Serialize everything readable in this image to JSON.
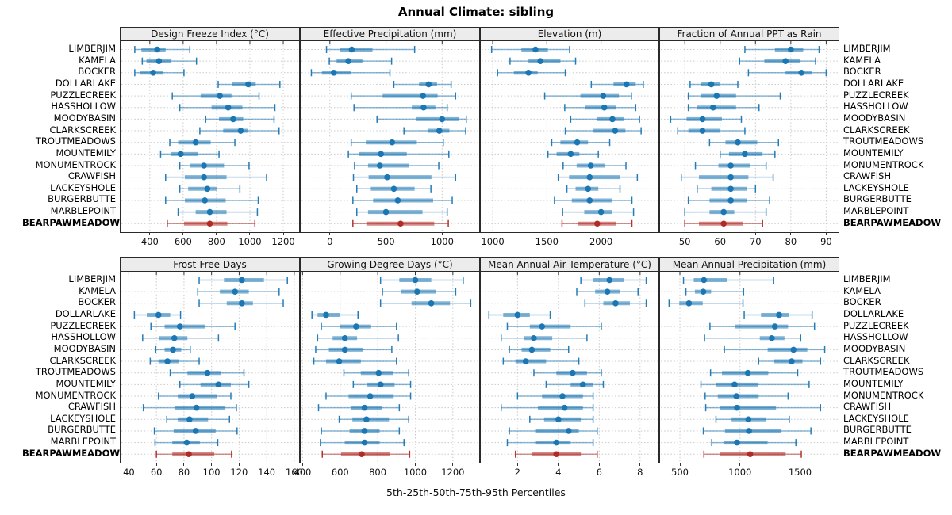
{
  "title": "Annual Climate: sibling",
  "footer": "5th-25th-50th-75th-95th Percentiles",
  "chart_data": {
    "type": "scatter",
    "subtype": "multi-panel percentile dotplot; each row shows 5th-25th-50th-75th-95th percentiles (whisker caps at 5th/95th, thick bar 25th-75th, dot at median)",
    "grid": "on",
    "stations": [
      "LIMBERJIM",
      "KAMELA",
      "BOCKER",
      "DOLLARLAKE",
      "PUZZLECREEK",
      "HASSHOLLOW",
      "MOODYBASIN",
      "CLARKSCREEK",
      "TROUTMEADOWS",
      "MOUNTEMILY",
      "MONUMENTROCK",
      "CRAWFISH",
      "LACKEYSHOLE",
      "BURGERBUTTE",
      "MARBLEPOINT",
      "BEARPAWMEADOW"
    ],
    "highlight_station": "BEARPAWMEADOW",
    "colors": {
      "series": "#1b76b4",
      "highlight": "#b12a24",
      "gridline": "#c9c9c9",
      "strip_bg": "#ececec",
      "panel_border": "#2a2a2a",
      "tick": "#333333"
    },
    "panels": [
      {
        "title": "Design Freeze Index (°C)",
        "grid_row": 0,
        "grid_col": 0,
        "xlim": [
          225,
          1295
        ],
        "ticks": [
          400,
          600,
          800,
          1000,
          1200
        ],
        "percentiles_5_25_50_75_95": [
          [
            310,
            350,
            445,
            495,
            640
          ],
          [
            355,
            380,
            455,
            530,
            680
          ],
          [
            310,
            340,
            420,
            480,
            605
          ],
          [
            810,
            895,
            990,
            1035,
            1180
          ],
          [
            535,
            705,
            820,
            890,
            1055
          ],
          [
            580,
            770,
            870,
            955,
            1150
          ],
          [
            735,
            815,
            900,
            960,
            1145
          ],
          [
            700,
            840,
            945,
            990,
            1175
          ],
          [
            520,
            570,
            675,
            765,
            910
          ],
          [
            465,
            525,
            585,
            690,
            815
          ],
          [
            580,
            640,
            725,
            845,
            995
          ],
          [
            495,
            610,
            725,
            860,
            1100
          ],
          [
            580,
            630,
            745,
            800,
            940
          ],
          [
            495,
            610,
            730,
            855,
            1050
          ],
          [
            570,
            675,
            760,
            860,
            1045
          ],
          [
            505,
            605,
            760,
            865,
            1030
          ]
        ]
      },
      {
        "title": "Effective Precipitation (mm)",
        "grid_row": 0,
        "grid_col": 1,
        "xlim": [
          -260,
          1330
        ],
        "ticks": [
          0,
          500,
          1000
        ],
        "percentiles_5_25_50_75_95": [
          [
            -30,
            90,
            195,
            380,
            755
          ],
          [
            -5,
            60,
            165,
            290,
            550
          ],
          [
            -165,
            -70,
            35,
            190,
            535
          ],
          [
            570,
            795,
            880,
            955,
            1080
          ],
          [
            190,
            470,
            830,
            960,
            1120
          ],
          [
            215,
            730,
            835,
            940,
            1045
          ],
          [
            420,
            765,
            1000,
            1150,
            1215
          ],
          [
            660,
            870,
            975,
            1065,
            1210
          ],
          [
            190,
            320,
            555,
            775,
            1010
          ],
          [
            165,
            260,
            455,
            685,
            1060
          ],
          [
            220,
            340,
            445,
            705,
            970
          ],
          [
            210,
            345,
            510,
            905,
            1120
          ],
          [
            240,
            365,
            570,
            755,
            900
          ],
          [
            205,
            385,
            605,
            920,
            1090
          ],
          [
            240,
            340,
            500,
            825,
            1045
          ],
          [
            205,
            325,
            630,
            930,
            1055
          ]
        ]
      },
      {
        "title": "Elevation (m)",
        "grid_row": 0,
        "grid_col": 2,
        "xlim": [
          890,
          2530
        ],
        "ticks": [
          1000,
          1500,
          2000
        ],
        "percentiles_5_25_50_75_95": [
          [
            990,
            1265,
            1395,
            1510,
            1710
          ],
          [
            1160,
            1330,
            1440,
            1625,
            1765
          ],
          [
            1045,
            1195,
            1330,
            1415,
            1670
          ],
          [
            1910,
            2115,
            2235,
            2320,
            2390
          ],
          [
            1480,
            1810,
            2020,
            2165,
            2280
          ],
          [
            1665,
            1855,
            2030,
            2140,
            2320
          ],
          [
            1720,
            1965,
            2105,
            2210,
            2355
          ],
          [
            1670,
            1930,
            2130,
            2225,
            2370
          ],
          [
            1545,
            1625,
            1780,
            1880,
            2080
          ],
          [
            1510,
            1590,
            1720,
            1800,
            1975
          ],
          [
            1650,
            1775,
            1905,
            2035,
            2230
          ],
          [
            1605,
            1705,
            1895,
            2175,
            2335
          ],
          [
            1685,
            1765,
            1880,
            1975,
            2175
          ],
          [
            1570,
            1730,
            1895,
            2100,
            2285
          ],
          [
            1645,
            1845,
            2000,
            2105,
            2300
          ],
          [
            1640,
            1790,
            1965,
            2135,
            2285
          ]
        ]
      },
      {
        "title": "Fraction of Annual PPT as Rain",
        "grid_row": 0,
        "grid_col": 3,
        "xlim": [
          43,
          93.5
        ],
        "ticks": [
          50,
          60,
          70,
          80,
          90
        ],
        "percentiles_5_25_50_75_95": [
          [
            67,
            75.5,
            80,
            83.5,
            88
          ],
          [
            65.5,
            72.5,
            78.5,
            82.5,
            87
          ],
          [
            68,
            78.5,
            83,
            86,
            90
          ],
          [
            51.5,
            54.5,
            57.5,
            60,
            65
          ],
          [
            51,
            54.5,
            59,
            64.5,
            77
          ],
          [
            51,
            53.5,
            58,
            64.5,
            71
          ],
          [
            46,
            50.5,
            55,
            60.5,
            66
          ],
          [
            48,
            51,
            55,
            60,
            67
          ],
          [
            57,
            61.5,
            65,
            70.5,
            76.5
          ],
          [
            60,
            62.5,
            67,
            72,
            75.5
          ],
          [
            53,
            59.5,
            63,
            68.5,
            73
          ],
          [
            49,
            54,
            63,
            68,
            75
          ],
          [
            53.5,
            57.5,
            63,
            67.5,
            70
          ],
          [
            51,
            57,
            63,
            67.5,
            74
          ],
          [
            50,
            57,
            61,
            64,
            73
          ],
          [
            50,
            54,
            61,
            66.5,
            72
          ]
        ]
      },
      {
        "title": "Frost-Free Days",
        "grid_row": 1,
        "grid_col": 0,
        "xlim": [
          34,
          163.5
        ],
        "ticks": [
          40,
          60,
          80,
          100,
          120,
          140,
          160
        ],
        "percentiles_5_25_50_75_95": [
          [
            91,
            109,
            122,
            138,
            155
          ],
          [
            90,
            106,
            117,
            127,
            149
          ],
          [
            91,
            111,
            122,
            130,
            152
          ],
          [
            44,
            53,
            61.5,
            70,
            77.5
          ],
          [
            56,
            66,
            77,
            95,
            117
          ],
          [
            50,
            62,
            73,
            82.5,
            105
          ],
          [
            59.5,
            66,
            72,
            78,
            84.5
          ],
          [
            55.5,
            61.5,
            68,
            76.5,
            91
          ],
          [
            70,
            82.5,
            97,
            107,
            123.5
          ],
          [
            77,
            92,
            105,
            114,
            127
          ],
          [
            61.5,
            75.5,
            86,
            104,
            114
          ],
          [
            50.5,
            73.5,
            89,
            110,
            118
          ],
          [
            67.5,
            75.5,
            84,
            97.5,
            113
          ],
          [
            58.5,
            72.5,
            88.5,
            103,
            118.5
          ],
          [
            59,
            71.5,
            82,
            91.5,
            104.5
          ],
          [
            60,
            71.5,
            83.5,
            102,
            114.5
          ]
        ]
      },
      {
        "title": "Growing Degree Days (°C)",
        "grid_row": 1,
        "grid_col": 1,
        "xlim": [
          390,
          1340
        ],
        "ticks": [
          400,
          600,
          800,
          1000,
          1200
        ],
        "percentiles_5_25_50_75_95": [
          [
            815,
            915,
            1000,
            1085,
            1255
          ],
          [
            825,
            925,
            1010,
            1110,
            1215
          ],
          [
            815,
            980,
            1085,
            1185,
            1295
          ],
          [
            450,
            480,
            525,
            600,
            695
          ],
          [
            500,
            600,
            685,
            765,
            900
          ],
          [
            480,
            560,
            625,
            690,
            910
          ],
          [
            470,
            540,
            625,
            720,
            875
          ],
          [
            460,
            525,
            595,
            710,
            900
          ],
          [
            620,
            710,
            805,
            880,
            965
          ],
          [
            670,
            745,
            815,
            890,
            975
          ],
          [
            525,
            645,
            760,
            885,
            975
          ],
          [
            485,
            660,
            730,
            825,
            915
          ],
          [
            595,
            665,
            740,
            860,
            965
          ],
          [
            500,
            650,
            730,
            810,
            915
          ],
          [
            495,
            625,
            730,
            810,
            940
          ],
          [
            505,
            605,
            715,
            865,
            970
          ]
        ]
      },
      {
        "title": "Mean Annual Air Temperature (°C)",
        "grid_row": 1,
        "grid_col": 2,
        "xlim": [
          0.2,
          8.9
        ],
        "ticks": [
          2,
          4,
          6,
          8
        ],
        "percentiles_5_25_50_75_95": [
          [
            5.1,
            5.7,
            6.5,
            7.2,
            8.3
          ],
          [
            4.9,
            5.8,
            6.4,
            7.0,
            7.9
          ],
          [
            5.3,
            6.2,
            6.8,
            7.5,
            8.3
          ],
          [
            0.6,
            1.3,
            2.0,
            2.6,
            3.6
          ],
          [
            1.5,
            2.6,
            3.2,
            4.6,
            6.1
          ],
          [
            1.2,
            2.3,
            2.8,
            3.7,
            5.4
          ],
          [
            1.6,
            2.2,
            2.7,
            3.6,
            4.5
          ],
          [
            1.3,
            1.9,
            2.4,
            3.4,
            5.0
          ],
          [
            2.8,
            3.9,
            4.7,
            5.4,
            6.1
          ],
          [
            3.4,
            4.6,
            5.2,
            5.7,
            6.2
          ],
          [
            2.0,
            3.2,
            4.2,
            5.2,
            5.7
          ],
          [
            1.2,
            3.0,
            4.3,
            5.2,
            5.7
          ],
          [
            2.6,
            3.3,
            4.0,
            5.1,
            5.7
          ],
          [
            1.6,
            2.9,
            4.5,
            5.0,
            5.9
          ],
          [
            1.5,
            2.9,
            3.9,
            4.6,
            5.7
          ],
          [
            1.9,
            2.7,
            3.9,
            5.1,
            5.9
          ]
        ]
      },
      {
        "title": "Mean Annual Precipitation (mm)",
        "grid_row": 1,
        "grid_col": 3,
        "xlim": [
          335,
          1820
        ],
        "ticks": [
          500,
          1000,
          1500
        ],
        "percentiles_5_25_50_75_95": [
          [
            530,
            615,
            700,
            890,
            1280
          ],
          [
            550,
            625,
            695,
            760,
            1030
          ],
          [
            410,
            495,
            575,
            690,
            1025
          ],
          [
            1035,
            1175,
            1325,
            1405,
            1600
          ],
          [
            750,
            960,
            1290,
            1400,
            1620
          ],
          [
            705,
            1165,
            1265,
            1370,
            1505
          ],
          [
            870,
            1230,
            1445,
            1560,
            1705
          ],
          [
            1155,
            1285,
            1430,
            1520,
            1670
          ],
          [
            755,
            850,
            1065,
            1235,
            1480
          ],
          [
            675,
            800,
            955,
            1150,
            1575
          ],
          [
            710,
            815,
            970,
            1155,
            1400
          ],
          [
            715,
            830,
            975,
            1300,
            1670
          ],
          [
            800,
            930,
            1070,
            1220,
            1410
          ],
          [
            695,
            875,
            1075,
            1340,
            1590
          ],
          [
            765,
            865,
            975,
            1230,
            1465
          ],
          [
            700,
            835,
            1085,
            1380,
            1510
          ]
        ]
      }
    ]
  }
}
